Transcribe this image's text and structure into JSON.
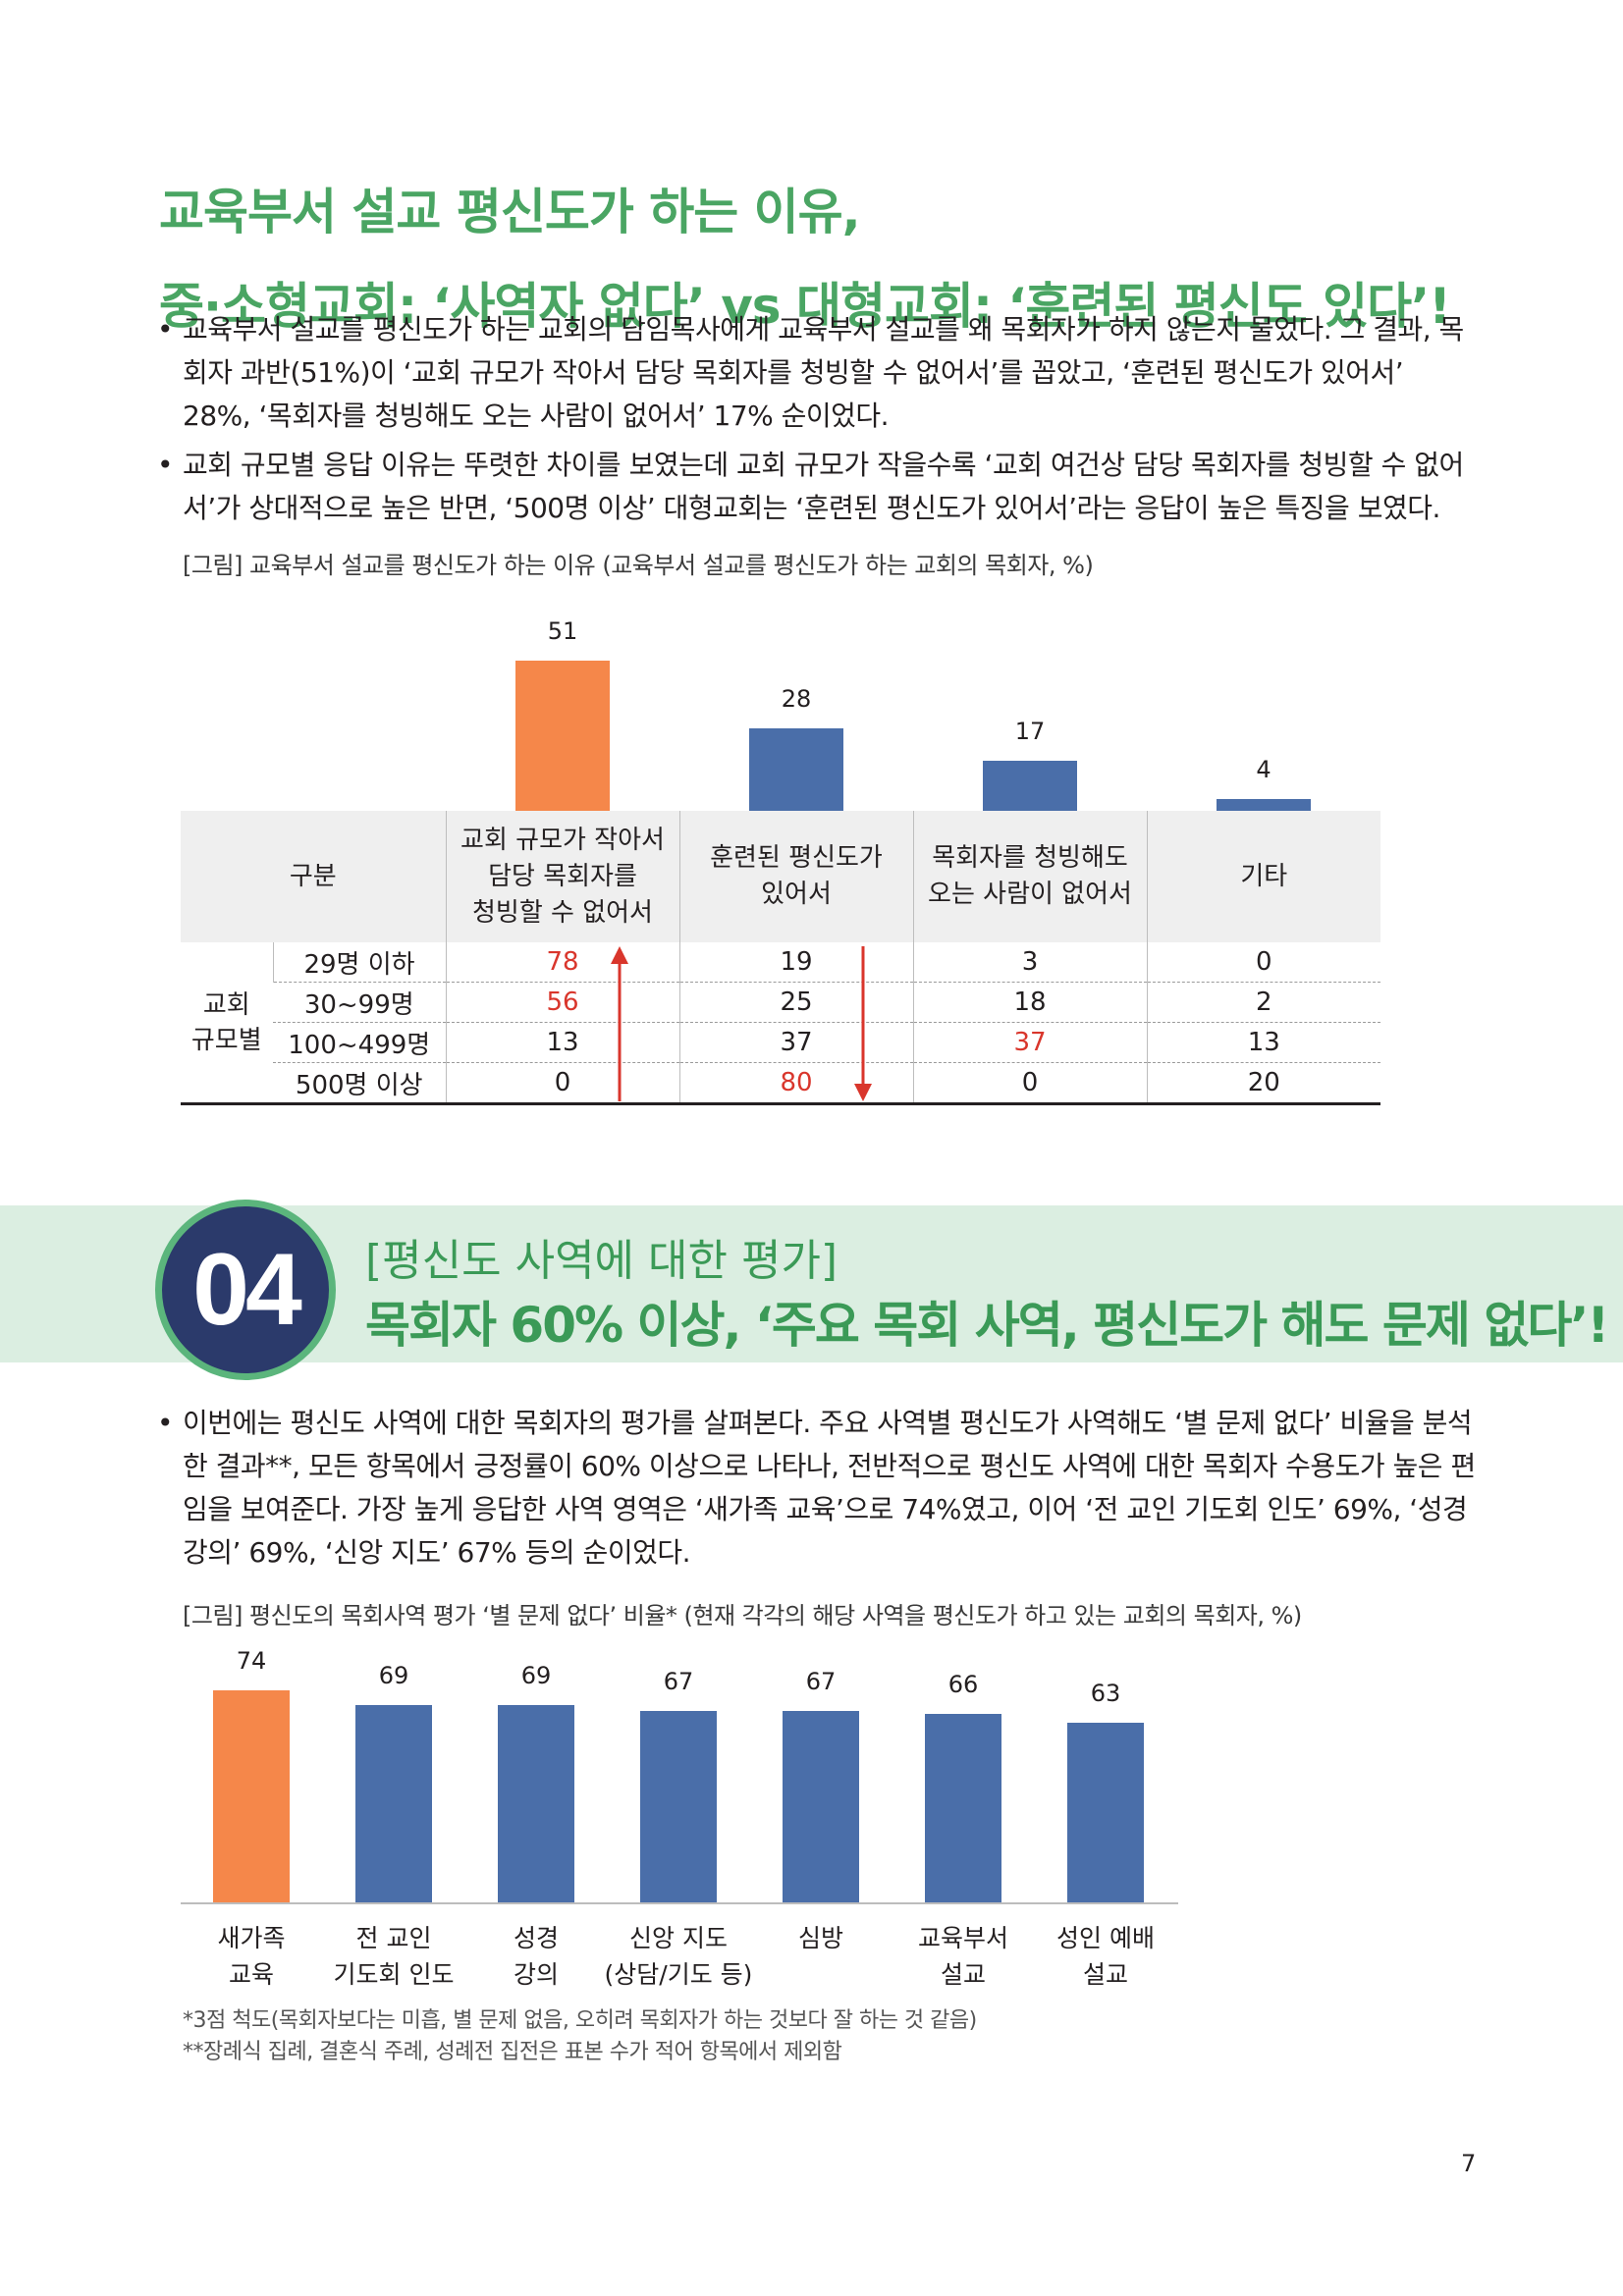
{
  "section1": {
    "title_line1": "교육부서 설교 평신도가 하는 이유,",
    "title_line2": "중·소형교회: ‘사역자 없다’ vs 대형교회: ‘훈련된 평신도 있다’!",
    "bullets": [
      "교육부서 설교를 평신도가 하는 교회의 담임목사에게 교육부서 설교를 왜 목회자가 하지 않는지 물었다. 그 결과, 목회자 과반(51%)이 ‘교회 규모가 작아서 담당 목회자를 청빙할 수 없어서’를 꼽았고, ‘훈련된 평신도가 있어서’ 28%, ‘목회자를 청빙해도 오는 사람이 없어서’ 17% 순이었다.",
      "교회 규모별 응답 이유는 뚜렷한 차이를 보였는데 교회 규모가 작을수록 ‘교회 여건상 담당 목회자를 청빙할 수 없어서’가 상대적으로 높은 반면, ‘500명 이상’ 대형교회는 ‘훈련된 평신도가 있어서’라는 응답이 높은 특징을 보였다."
    ],
    "caption": "[그림] 교육부서 설교를 평신도가 하는 이유 (교육부서 설교를 평신도가 하는 교회의 목회자, %)",
    "table": {
      "header_label": "구분",
      "columns": [
        "교회 규모가 작아서\n담당 목회자를\n청빙할 수 없어서",
        "훈련된 평신도가\n있어서",
        "목회자를 청빙해도\n오는 사람이 없어서",
        "기타"
      ],
      "group_label": "교회\n규모별",
      "rows": [
        {
          "label": "29명 이하",
          "values": [
            "78",
            "19",
            "3",
            "0"
          ]
        },
        {
          "label": "30~99명",
          "values": [
            "56",
            "25",
            "18",
            "2"
          ]
        },
        {
          "label": "100~499명",
          "values": [
            "13",
            "37",
            "37",
            "13"
          ]
        },
        {
          "label": "500명 이상",
          "values": [
            "0",
            "80",
            "0",
            "20"
          ]
        }
      ]
    }
  },
  "section2": {
    "number": "04",
    "subtitle": "[평신도 사역에 대한 평가]",
    "title": "목회자 60% 이상, ‘주요 목회 사역, 평신도가 해도 문제 없다’!",
    "bullet": "이번에는 평신도 사역에 대한 목회자의 평가를 살펴본다. 주요 사역별 평신도가 사역해도 ‘별 문제 없다’ 비율을 분석한 결과**, 모든 항목에서 긍정률이 60% 이상으로 나타나, 전반적으로 평신도 사역에 대한 목회자 수용도가 높은 편임을 보여준다. 가장 높게 응답한 사역 영역은 ‘새가족 교육’으로 74%였고, 이어 ‘전 교인 기도회 인도’ 69%, ‘성경 강의’ 69%, ‘신앙 지도’ 67% 등의 순이었다.",
    "caption": "[그림] 평신도의 목회사역 평가 ‘별 문제 없다’ 비율* (현재 각각의 해당 사역을 평신도가 하고 있는 교회의 목회자, %)",
    "notes": [
      "*3점 척도(목회자보다는 미흡, 별 문제 없음, 오히려 목회자가 하는 것보다 잘 하는 것 같음)",
      "**장례식 집례, 결혼식 주례, 성례전 집전은 표본 수가 적어 항목에서 제외함"
    ]
  },
  "chart_data": [
    {
      "type": "bar",
      "title": "교육부서 설교를 평신도가 하는 이유",
      "categories": [
        "교회 규모가 작아서 담당 목회자를 청빙할 수 없어서",
        "훈련된 평신도가 있어서",
        "목회자를 청빙해도 오는 사람이 없어서",
        "기타"
      ],
      "values": [
        51,
        28,
        17,
        4
      ],
      "labels": [
        "51",
        "28",
        "17",
        "4"
      ],
      "highlight": [
        true,
        false,
        false,
        false
      ],
      "ylim": [
        0,
        60
      ]
    },
    {
      "type": "bar",
      "title": "평신도의 목회사역 평가 ‘별 문제 없다’ 비율",
      "categories": [
        "새가족\n교육",
        "전 교인\n기도회 인도",
        "성경\n강의",
        "신앙 지도\n(상담/기도 등)",
        "심방",
        "교육부서\n설교",
        "성인 예배\n설교"
      ],
      "values": [
        74,
        69,
        69,
        67,
        67,
        66,
        63
      ],
      "labels": [
        "74",
        "69",
        "69",
        "67",
        "67",
        "66",
        "63"
      ],
      "highlight": [
        true,
        false,
        false,
        false,
        false,
        false,
        false
      ],
      "ylim": [
        0,
        80
      ]
    }
  ],
  "page_number": "7",
  "colors": {
    "accent": "#4aa563",
    "orange": "#f5874a",
    "blue": "#4a6ea9",
    "red": "#d9362c",
    "navy": "#2b3a6b"
  }
}
